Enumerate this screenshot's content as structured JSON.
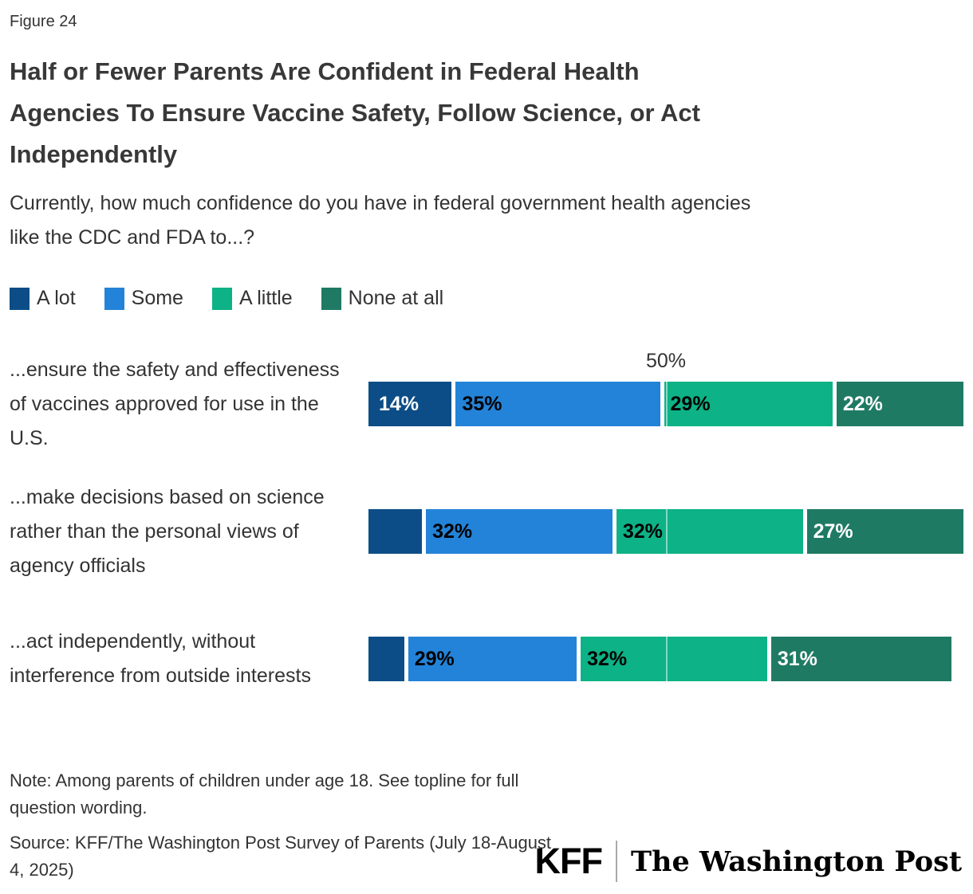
{
  "figure_label": "Figure 24",
  "title_lines": [
    "Half or Fewer Parents Are Confident in Federal Health",
    "Agencies To Ensure Vaccine Safety, Follow Science, or Act",
    "Independently"
  ],
  "subtitle": "Currently, how much confidence do you have in federal government health agencies like the CDC and FDA to...?",
  "note": "Note: Among parents of children under age 18. See topline for full question wording.",
  "source": "Source: KFF/The Washington Post Survey of Parents (July 18-August 4, 2025)",
  "logos": {
    "kff": "KFF",
    "wapo": "The Washington Post"
  },
  "colors": {
    "a_lot": "#0c4d87",
    "some": "#2383d8",
    "a_little": "#0db286",
    "none_at_all": "#1f7a64",
    "text": "#333333",
    "background": "#ffffff"
  },
  "chart_data": {
    "type": "bar",
    "stacked": true,
    "orientation": "horizontal",
    "legend_position": "top",
    "x_axis": {
      "min": 0,
      "max": 100,
      "unit": "%",
      "gridline_at": 50,
      "gridline_label": "50%"
    },
    "categories": [
      "...ensure the safety and effectiveness of vaccines approved for use in the U.S.",
      "...make decisions based on science rather than the personal views of agency officials",
      "...act independently, without interference from outside interests"
    ],
    "series": [
      {
        "name": "A lot",
        "color": "#0c4d87",
        "label_color": "#ffffff",
        "values": [
          14,
          9,
          6
        ],
        "labels": [
          "14%",
          "",
          ""
        ]
      },
      {
        "name": "Some",
        "color": "#2383d8",
        "label_color": "#000000",
        "values": [
          35,
          32,
          29
        ],
        "labels": [
          "35%",
          "32%",
          "29%"
        ]
      },
      {
        "name": "A little",
        "color": "#0db286",
        "label_color": "#000000",
        "values": [
          29,
          32,
          32
        ],
        "labels": [
          "29%",
          "32%",
          "32%"
        ]
      },
      {
        "name": "None at all",
        "color": "#1f7a64",
        "label_color": "#ffffff",
        "values": [
          22,
          27,
          31
        ],
        "labels": [
          "22%",
          "27%",
          "31%"
        ]
      }
    ]
  }
}
